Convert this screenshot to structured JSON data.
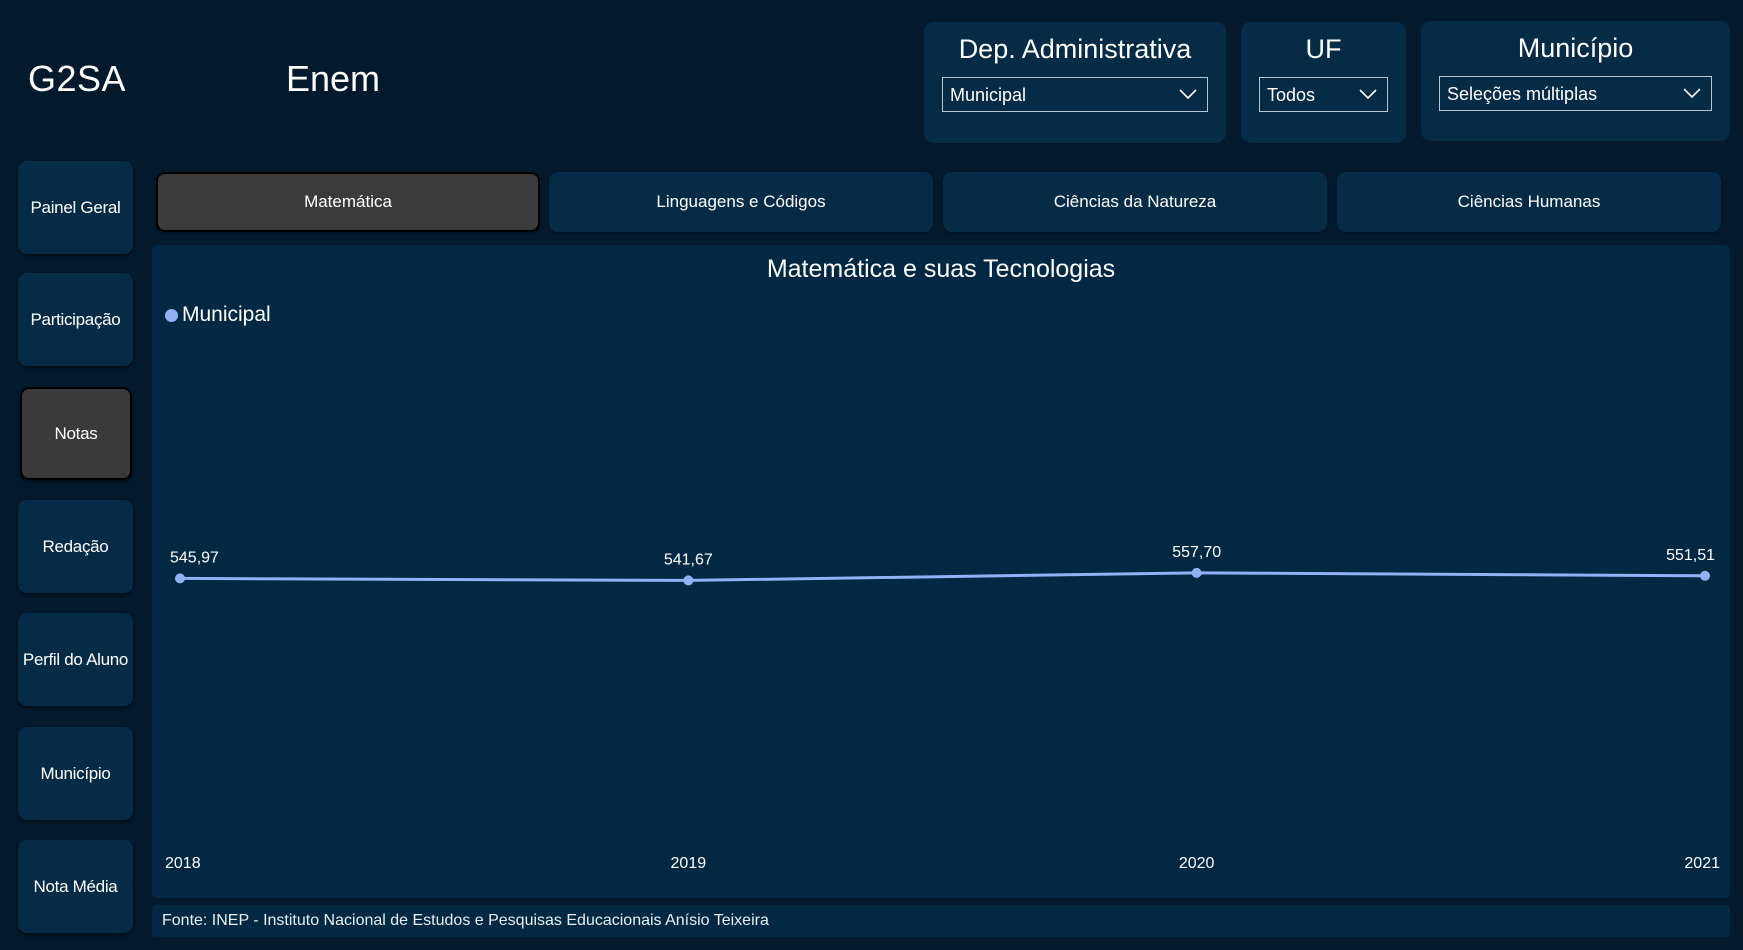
{
  "header": {
    "brand": "G2SA",
    "title": "Enem"
  },
  "filters": [
    {
      "title": "Dep. Administrativa",
      "value": "Municipal"
    },
    {
      "title": "UF",
      "value": "Todos"
    },
    {
      "title": "Município",
      "value": "Seleções múltiplas"
    }
  ],
  "nav": {
    "items": [
      {
        "label": "Painel Geral",
        "active": false
      },
      {
        "label": "Participação",
        "active": false
      },
      {
        "label": "Notas",
        "active": true
      },
      {
        "label": "Redação",
        "active": false
      },
      {
        "label": "Perfil do Aluno",
        "active": false
      },
      {
        "label": "Município",
        "active": false
      },
      {
        "label": "Nota Média",
        "active": false
      }
    ]
  },
  "tabs": [
    {
      "label": "Matemática",
      "active": true
    },
    {
      "label": "Linguagens e Códigos",
      "active": false
    },
    {
      "label": "Ciências da Natureza",
      "active": false
    },
    {
      "label": "Ciências Humanas",
      "active": false
    }
  ],
  "colors": {
    "background": "#021a2c",
    "panel": "#022843",
    "card": "#062b46",
    "active": "#3b3b3b",
    "series": "#8fb3f5"
  },
  "chart_data": {
    "type": "line",
    "title": "Matemática e suas Tecnologias",
    "x": [
      "2018",
      "2019",
      "2020",
      "2021"
    ],
    "series": [
      {
        "name": "Municipal",
        "values": [
          545.97,
          541.67,
          557.7,
          551.51
        ],
        "labels": [
          "545,97",
          "541,67",
          "557,70",
          "551,51"
        ]
      }
    ],
    "ylim": [
      0,
      1000
    ],
    "grid": false,
    "legend": "top-left"
  },
  "footer": {
    "source": "Fonte: INEP - Instituto Nacional de Estudos e Pesquisas Educacionais Anísio Teixeira"
  }
}
